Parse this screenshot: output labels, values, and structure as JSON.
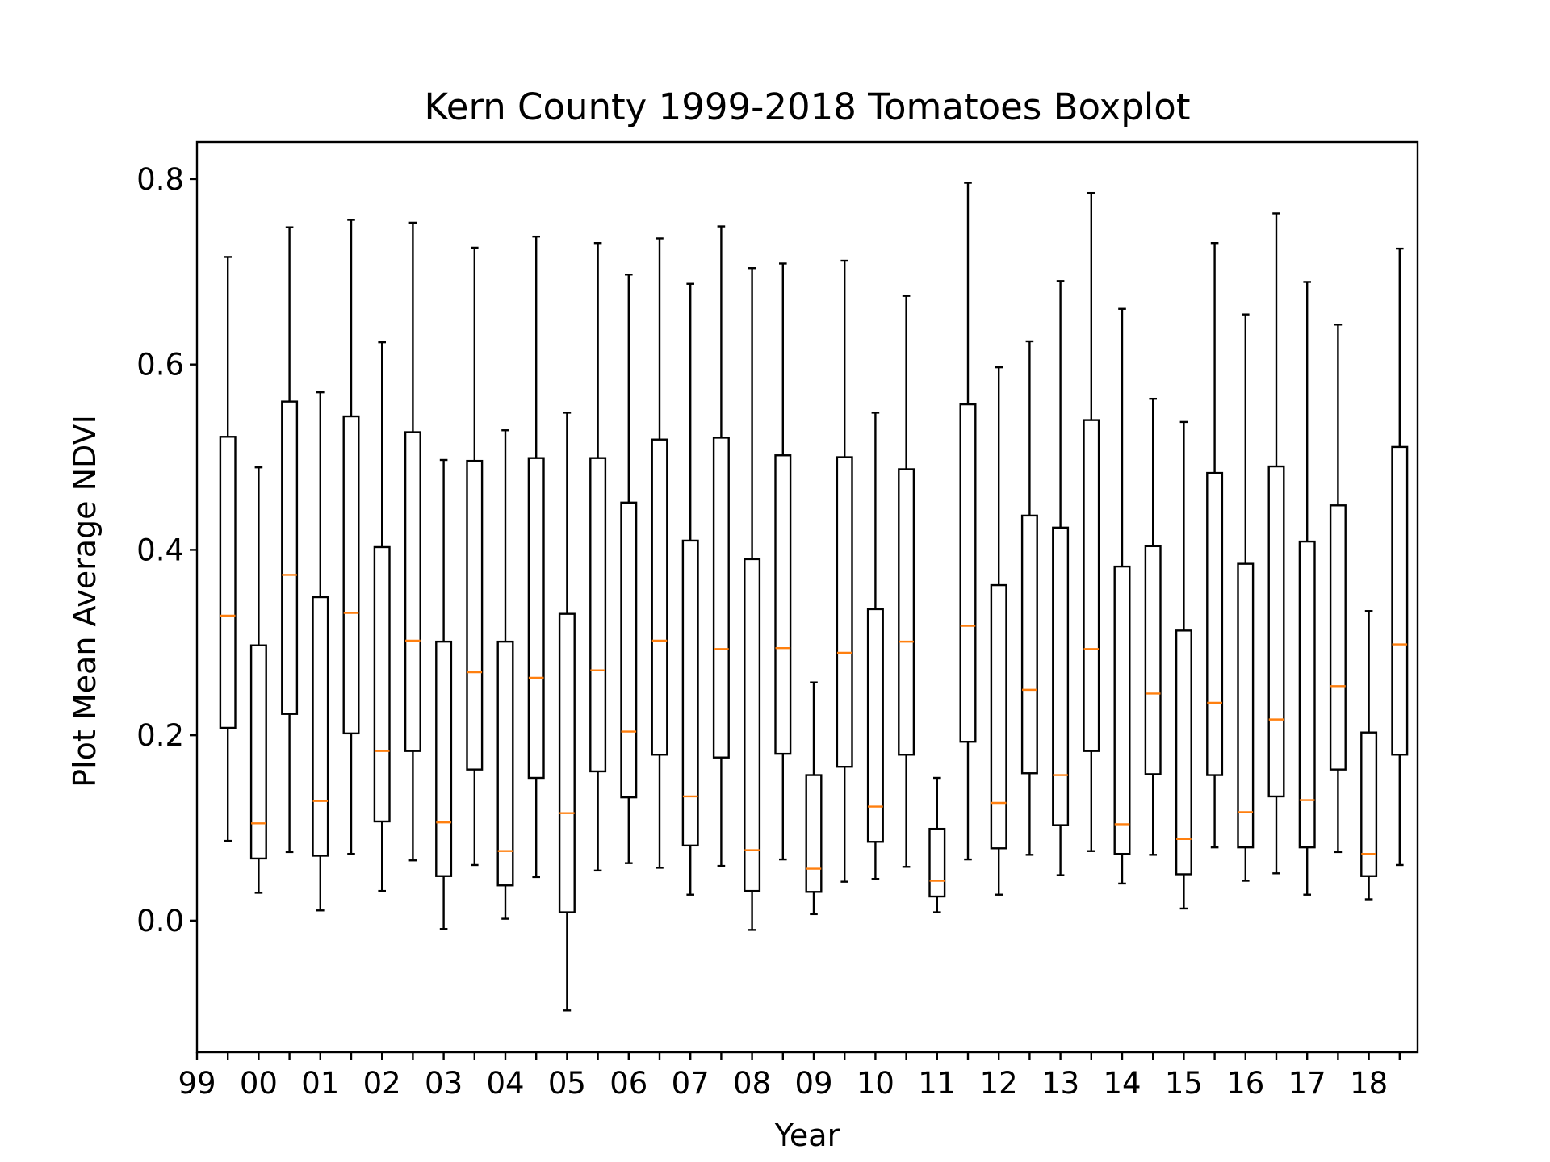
{
  "chart_data": {
    "type": "box",
    "title": "Kern County 1999-2018 Tomatoes Boxplot",
    "xlabel": "Year",
    "ylabel": "Plot Mean Average NDVI",
    "ylim": [
      -0.142,
      0.84
    ],
    "y_ticks": [
      "0.0",
      "0.2",
      "0.4",
      "0.6",
      "0.8"
    ],
    "y_tick_values": [
      0.0,
      0.2,
      0.4,
      0.6,
      0.8
    ],
    "x_tick_labels": [
      "99",
      "00",
      "01",
      "02",
      "03",
      "04",
      "05",
      "06",
      "07",
      "08",
      "09",
      "10",
      "11",
      "12",
      "13",
      "14",
      "15",
      "16",
      "17",
      "18"
    ],
    "grid": false,
    "colors": {
      "box": "#000000",
      "median": "#ff7f0e"
    },
    "boxes": [
      {
        "whislo": 0.086,
        "q1": 0.208,
        "med": 0.329,
        "q3": 0.522,
        "whishi": 0.716
      },
      {
        "whislo": 0.03,
        "q1": 0.067,
        "med": 0.105,
        "q3": 0.297,
        "whishi": 0.489
      },
      {
        "whislo": 0.074,
        "q1": 0.223,
        "med": 0.373,
        "q3": 0.56,
        "whishi": 0.748
      },
      {
        "whislo": 0.011,
        "q1": 0.07,
        "med": 0.129,
        "q3": 0.349,
        "whishi": 0.57
      },
      {
        "whislo": 0.072,
        "q1": 0.202,
        "med": 0.332,
        "q3": 0.544,
        "whishi": 0.756
      },
      {
        "whislo": 0.032,
        "q1": 0.107,
        "med": 0.183,
        "q3": 0.403,
        "whishi": 0.624
      },
      {
        "whislo": 0.065,
        "q1": 0.183,
        "med": 0.302,
        "q3": 0.527,
        "whishi": 0.753
      },
      {
        "whislo": -0.009,
        "q1": 0.048,
        "med": 0.106,
        "q3": 0.301,
        "whishi": 0.497
      },
      {
        "whislo": 0.06,
        "q1": 0.163,
        "med": 0.268,
        "q3": 0.496,
        "whishi": 0.726
      },
      {
        "whislo": 0.002,
        "q1": 0.038,
        "med": 0.075,
        "q3": 0.301,
        "whishi": 0.529
      },
      {
        "whislo": 0.047,
        "q1": 0.154,
        "med": 0.262,
        "q3": 0.499,
        "whishi": 0.738
      },
      {
        "whislo": -0.097,
        "q1": 0.009,
        "med": 0.116,
        "q3": 0.331,
        "whishi": 0.548
      },
      {
        "whislo": 0.054,
        "q1": 0.161,
        "med": 0.27,
        "q3": 0.499,
        "whishi": 0.731
      },
      {
        "whislo": 0.062,
        "q1": 0.133,
        "med": 0.204,
        "q3": 0.451,
        "whishi": 0.697
      },
      {
        "whislo": 0.057,
        "q1": 0.179,
        "med": 0.302,
        "q3": 0.519,
        "whishi": 0.736
      },
      {
        "whislo": 0.028,
        "q1": 0.081,
        "med": 0.134,
        "q3": 0.41,
        "whishi": 0.687
      },
      {
        "whislo": 0.059,
        "q1": 0.176,
        "med": 0.293,
        "q3": 0.521,
        "whishi": 0.749
      },
      {
        "whislo": -0.01,
        "q1": 0.032,
        "med": 0.076,
        "q3": 0.39,
        "whishi": 0.704
      },
      {
        "whislo": 0.066,
        "q1": 0.18,
        "med": 0.294,
        "q3": 0.502,
        "whishi": 0.709
      },
      {
        "whislo": 0.007,
        "q1": 0.031,
        "med": 0.056,
        "q3": 0.157,
        "whishi": 0.257
      },
      {
        "whislo": 0.042,
        "q1": 0.166,
        "med": 0.289,
        "q3": 0.5,
        "whishi": 0.712
      },
      {
        "whislo": 0.045,
        "q1": 0.085,
        "med": 0.123,
        "q3": 0.336,
        "whishi": 0.548
      },
      {
        "whislo": 0.058,
        "q1": 0.179,
        "med": 0.301,
        "q3": 0.487,
        "whishi": 0.674
      },
      {
        "whislo": 0.009,
        "q1": 0.026,
        "med": 0.043,
        "q3": 0.099,
        "whishi": 0.154
      },
      {
        "whislo": 0.066,
        "q1": 0.193,
        "med": 0.318,
        "q3": 0.557,
        "whishi": 0.796
      },
      {
        "whislo": 0.028,
        "q1": 0.078,
        "med": 0.127,
        "q3": 0.362,
        "whishi": 0.597
      },
      {
        "whislo": 0.071,
        "q1": 0.159,
        "med": 0.249,
        "q3": 0.437,
        "whishi": 0.625
      },
      {
        "whislo": 0.049,
        "q1": 0.103,
        "med": 0.157,
        "q3": 0.424,
        "whishi": 0.69
      },
      {
        "whislo": 0.075,
        "q1": 0.183,
        "med": 0.293,
        "q3": 0.54,
        "whishi": 0.785
      },
      {
        "whislo": 0.04,
        "q1": 0.072,
        "med": 0.104,
        "q3": 0.382,
        "whishi": 0.66
      },
      {
        "whislo": 0.071,
        "q1": 0.158,
        "med": 0.245,
        "q3": 0.404,
        "whishi": 0.563
      },
      {
        "whislo": 0.013,
        "q1": 0.05,
        "med": 0.088,
        "q3": 0.313,
        "whishi": 0.538
      },
      {
        "whislo": 0.079,
        "q1": 0.157,
        "med": 0.235,
        "q3": 0.483,
        "whishi": 0.731
      },
      {
        "whislo": 0.043,
        "q1": 0.079,
        "med": 0.117,
        "q3": 0.385,
        "whishi": 0.654
      },
      {
        "whislo": 0.051,
        "q1": 0.134,
        "med": 0.217,
        "q3": 0.49,
        "whishi": 0.763
      },
      {
        "whislo": 0.028,
        "q1": 0.079,
        "med": 0.13,
        "q3": 0.409,
        "whishi": 0.689
      },
      {
        "whislo": 0.074,
        "q1": 0.163,
        "med": 0.253,
        "q3": 0.448,
        "whishi": 0.643
      },
      {
        "whislo": 0.023,
        "q1": 0.048,
        "med": 0.072,
        "q3": 0.203,
        "whishi": 0.334
      },
      {
        "whislo": 0.06,
        "q1": 0.179,
        "med": 0.298,
        "q3": 0.511,
        "whishi": 0.725
      }
    ]
  }
}
